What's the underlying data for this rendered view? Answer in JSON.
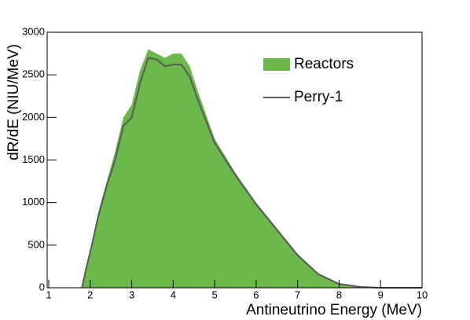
{
  "chart_data": {
    "type": "area_line",
    "x_label": "Antineutrino Energy (MeV)",
    "y_label": "dR/dE (NIU/MeV)",
    "xlim": [
      1,
      10
    ],
    "xticks": [
      1,
      2,
      3,
      4,
      5,
      6,
      7,
      8,
      9,
      10
    ],
    "ylim": [
      0,
      3000
    ],
    "yticks": [
      0,
      500,
      1000,
      1500,
      2000,
      2500,
      3000
    ],
    "x": [
      1.8,
      1.9,
      2.0,
      2.2,
      2.4,
      2.6,
      2.8,
      3.0,
      3.2,
      3.4,
      3.6,
      3.8,
      4.0,
      4.2,
      4.4,
      4.6,
      5.0,
      5.5,
      6.0,
      6.5,
      7.0,
      7.5,
      8.0,
      8.5,
      9.0,
      9.5,
      10
    ],
    "legend": "upper right",
    "series": [
      {
        "name": "Reactors",
        "color": "#6cb84a",
        "kind": "area",
        "values": [
          0,
          250,
          450,
          900,
          1250,
          1600,
          2000,
          2150,
          2550,
          2800,
          2750,
          2700,
          2750,
          2750,
          2600,
          2300,
          1750,
          1350,
          1000,
          700,
          400,
          170,
          50,
          10,
          0,
          0,
          0
        ]
      },
      {
        "name": "Perry-1",
        "color": "#5a5a5a",
        "kind": "line",
        "values": [
          0,
          220,
          420,
          850,
          1200,
          1500,
          1900,
          2000,
          2400,
          2700,
          2680,
          2600,
          2620,
          2620,
          2480,
          2200,
          1700,
          1320,
          980,
          680,
          380,
          160,
          45,
          10,
          0,
          0,
          0
        ]
      }
    ]
  }
}
